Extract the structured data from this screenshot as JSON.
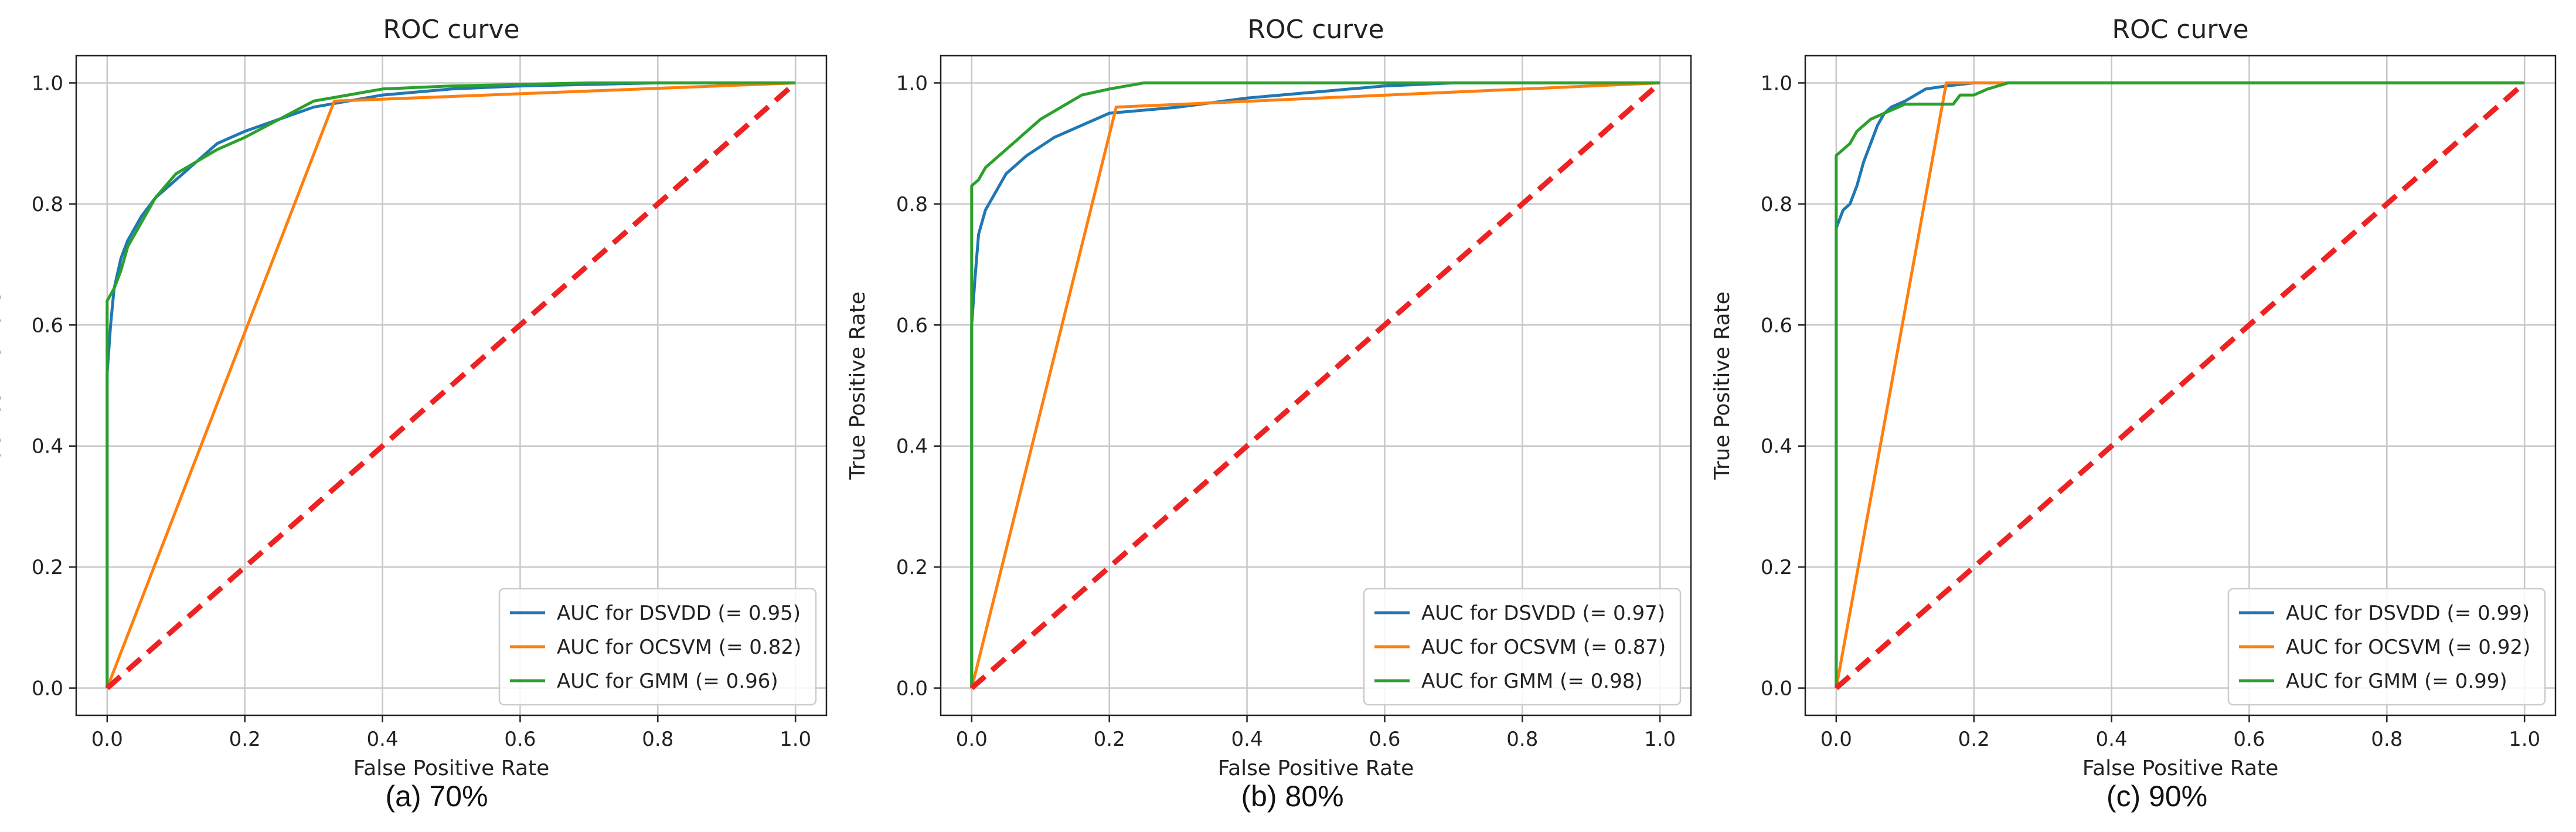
{
  "chart_data": [
    {
      "type": "line",
      "title": "ROC curve",
      "xlabel": "False Positive Rate",
      "ylabel": "True Positive Rate",
      "caption": "(a) 70%",
      "xlim": [
        0,
        1
      ],
      "ylim": [
        0,
        1
      ],
      "xticks": [
        "0.0",
        "0.2",
        "0.4",
        "0.6",
        "0.8",
        "1.0"
      ],
      "yticks": [
        "0.0",
        "0.2",
        "0.4",
        "0.6",
        "0.8",
        "1.0"
      ],
      "grid": true,
      "legend_position": "lower-right",
      "series": [
        {
          "name": "AUC for DSVDD (= 0.95)",
          "color": "#1f77b4",
          "style": "solid",
          "x": [
            0,
            0,
            0.005,
            0.01,
            0.02,
            0.03,
            0.05,
            0.07,
            0.1,
            0.13,
            0.16,
            0.2,
            0.25,
            0.3,
            0.4,
            0.5,
            0.6,
            0.8,
            1.0
          ],
          "y": [
            0,
            0.52,
            0.6,
            0.66,
            0.71,
            0.74,
            0.78,
            0.81,
            0.84,
            0.87,
            0.9,
            0.92,
            0.94,
            0.96,
            0.98,
            0.99,
            0.995,
            1.0,
            1.0
          ]
        },
        {
          "name": "AUC for OCSVM (= 0.82)",
          "color": "#ff7f0e",
          "style": "solid",
          "x": [
            0,
            0.33,
            1.0
          ],
          "y": [
            0,
            0.97,
            1.0
          ]
        },
        {
          "name": "AUC for GMM (= 0.96)",
          "color": "#2ca02c",
          "style": "solid",
          "x": [
            0,
            0,
            0.01,
            0.02,
            0.03,
            0.05,
            0.07,
            0.1,
            0.13,
            0.16,
            0.2,
            0.25,
            0.3,
            0.35,
            0.4,
            0.5,
            0.7,
            1.0
          ],
          "y": [
            0,
            0.64,
            0.66,
            0.69,
            0.73,
            0.77,
            0.81,
            0.85,
            0.87,
            0.89,
            0.91,
            0.94,
            0.97,
            0.98,
            0.99,
            0.995,
            1.0,
            1.0
          ]
        },
        {
          "name": "chance",
          "color": "#ee2222",
          "style": "dashed",
          "legend": false,
          "x": [
            0,
            1
          ],
          "y": [
            0,
            1
          ]
        }
      ]
    },
    {
      "type": "line",
      "title": "ROC curve",
      "xlabel": "False Positive Rate",
      "ylabel": "True Positive Rate",
      "caption": "(b) 80%",
      "xlim": [
        0,
        1
      ],
      "ylim": [
        0,
        1
      ],
      "xticks": [
        "0.0",
        "0.2",
        "0.4",
        "0.6",
        "0.8",
        "1.0"
      ],
      "yticks": [
        "0.0",
        "0.2",
        "0.4",
        "0.6",
        "0.8",
        "1.0"
      ],
      "grid": true,
      "legend_position": "lower-right",
      "series": [
        {
          "name": "AUC for DSVDD (= 0.97)",
          "color": "#1f77b4",
          "style": "solid",
          "x": [
            0,
            0,
            0.005,
            0.01,
            0.02,
            0.03,
            0.05,
            0.08,
            0.12,
            0.16,
            0.2,
            0.3,
            0.4,
            0.5,
            0.6,
            0.7,
            1.0
          ],
          "y": [
            0,
            0.6,
            0.68,
            0.75,
            0.79,
            0.81,
            0.85,
            0.88,
            0.91,
            0.93,
            0.95,
            0.96,
            0.975,
            0.985,
            0.995,
            1.0,
            1.0
          ]
        },
        {
          "name": "AUC for OCSVM (= 0.87)",
          "color": "#ff7f0e",
          "style": "solid",
          "x": [
            0,
            0.21,
            1.0
          ],
          "y": [
            0,
            0.96,
            1.0
          ]
        },
        {
          "name": "AUC for GMM (= 0.98)",
          "color": "#2ca02c",
          "style": "solid",
          "x": [
            0,
            0,
            0.01,
            0.02,
            0.04,
            0.06,
            0.08,
            0.1,
            0.13,
            0.16,
            0.2,
            0.25,
            1.0
          ],
          "y": [
            0,
            0.83,
            0.84,
            0.86,
            0.88,
            0.9,
            0.92,
            0.94,
            0.96,
            0.98,
            0.99,
            1.0,
            1.0
          ]
        },
        {
          "name": "chance",
          "color": "#ee2222",
          "style": "dashed",
          "legend": false,
          "x": [
            0,
            1
          ],
          "y": [
            0,
            1
          ]
        }
      ]
    },
    {
      "type": "line",
      "title": "ROC curve",
      "xlabel": "False Positive Rate",
      "ylabel": "True Positive Rate",
      "caption": "(c) 90%",
      "xlim": [
        0,
        1
      ],
      "ylim": [
        0,
        1
      ],
      "xticks": [
        "0.0",
        "0.2",
        "0.4",
        "0.6",
        "0.8",
        "1.0"
      ],
      "yticks": [
        "0.0",
        "0.2",
        "0.4",
        "0.6",
        "0.8",
        "1.0"
      ],
      "grid": true,
      "legend_position": "lower-right",
      "series": [
        {
          "name": "AUC for DSVDD (= 0.99)",
          "color": "#1f77b4",
          "style": "solid",
          "x": [
            0,
            0,
            0.01,
            0.02,
            0.03,
            0.04,
            0.05,
            0.06,
            0.07,
            0.08,
            0.1,
            0.13,
            0.16,
            0.2,
            0.3,
            1.0
          ],
          "y": [
            0,
            0.76,
            0.79,
            0.8,
            0.83,
            0.87,
            0.9,
            0.93,
            0.95,
            0.96,
            0.97,
            0.99,
            0.995,
            1.0,
            1.0,
            1.0
          ]
        },
        {
          "name": "AUC for OCSVM (= 0.92)",
          "color": "#ff7f0e",
          "style": "solid",
          "x": [
            0,
            0.16,
            1.0
          ],
          "y": [
            0,
            1.0,
            1.0
          ]
        },
        {
          "name": "AUC for GMM (= 0.99)",
          "color": "#2ca02c",
          "style": "solid",
          "x": [
            0,
            0,
            0.01,
            0.02,
            0.03,
            0.05,
            0.07,
            0.1,
            0.14,
            0.17,
            0.18,
            0.2,
            0.22,
            0.25,
            0.3,
            1.0
          ],
          "y": [
            0,
            0.88,
            0.89,
            0.9,
            0.92,
            0.94,
            0.95,
            0.965,
            0.965,
            0.965,
            0.98,
            0.98,
            0.99,
            1.0,
            1.0,
            1.0
          ]
        },
        {
          "name": "chance",
          "color": "#ee2222",
          "style": "dashed",
          "legend": false,
          "x": [
            0,
            1
          ],
          "y": [
            0,
            1
          ]
        }
      ]
    }
  ]
}
